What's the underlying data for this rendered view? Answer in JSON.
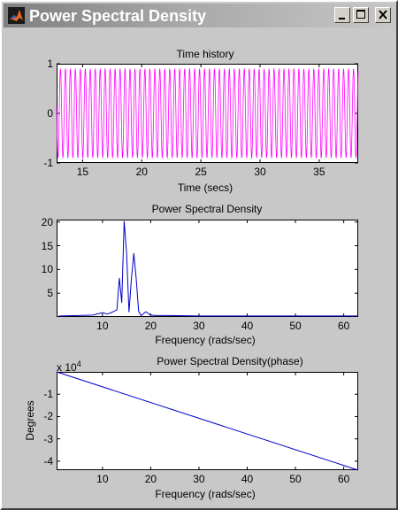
{
  "window": {
    "title": "Power Spectral Density",
    "buttons": {
      "minimize": "minimize",
      "maximize": "maximize",
      "close": "close"
    }
  },
  "colors": {
    "time_series": "#ff00ff",
    "psd_series": "#0000cc",
    "phase_series": "#0000cc",
    "background": "#c8c8c8"
  },
  "chart_data": [
    {
      "type": "line",
      "title": "Time history",
      "xlabel": "Time (secs)",
      "ylabel": "",
      "xlim": [
        12.8,
        38.3
      ],
      "ylim": [
        -1,
        1
      ],
      "xticks": [
        "15",
        "20",
        "25",
        "30",
        "35"
      ],
      "yticks": [
        "1",
        "0",
        "-1"
      ],
      "series": [
        {
          "description": "sinusoidal signal, amplitude ~0.9, oscillating between -0.9 and 0.9"
        }
      ]
    },
    {
      "type": "line",
      "title": "Power Spectral Density",
      "xlabel": "Frequency (rads/sec)",
      "ylabel": "",
      "xlim": [
        0.5,
        63
      ],
      "ylim": [
        0,
        20.5
      ],
      "xticks": [
        "10",
        "20",
        "30",
        "40",
        "50",
        "60"
      ],
      "yticks": [
        "20",
        "15",
        "10",
        "5"
      ],
      "x": [
        1,
        5,
        8,
        10,
        11,
        12,
        13,
        13.5,
        14,
        14.5,
        15,
        15.5,
        16,
        16.5,
        17,
        17.5,
        18,
        19,
        20,
        21,
        24,
        30,
        40,
        50,
        63
      ],
      "y": [
        0.2,
        0.3,
        0.4,
        0.9,
        0.6,
        1.0,
        1.5,
        8.2,
        3.0,
        20.2,
        13.5,
        1.0,
        8.0,
        13.4,
        8.0,
        1.2,
        0.3,
        1.1,
        0.4,
        0.3,
        0.3,
        0.2,
        0.2,
        0.2,
        0.2
      ]
    },
    {
      "type": "line",
      "title": "Power Spectral Density(phase)",
      "xlabel": "Frequency (rads/sec)",
      "ylabel": "Degrees",
      "exponent_label": "x 10",
      "exponent_power": "4",
      "xlim": [
        0.5,
        63
      ],
      "ylim": [
        -4.4,
        0
      ],
      "xticks": [
        "10",
        "20",
        "30",
        "40",
        "50",
        "60"
      ],
      "yticks": [
        "-1",
        "-2",
        "-3",
        "-4"
      ],
      "x": [
        0.5,
        63
      ],
      "y": [
        0,
        -4.4
      ]
    }
  ]
}
